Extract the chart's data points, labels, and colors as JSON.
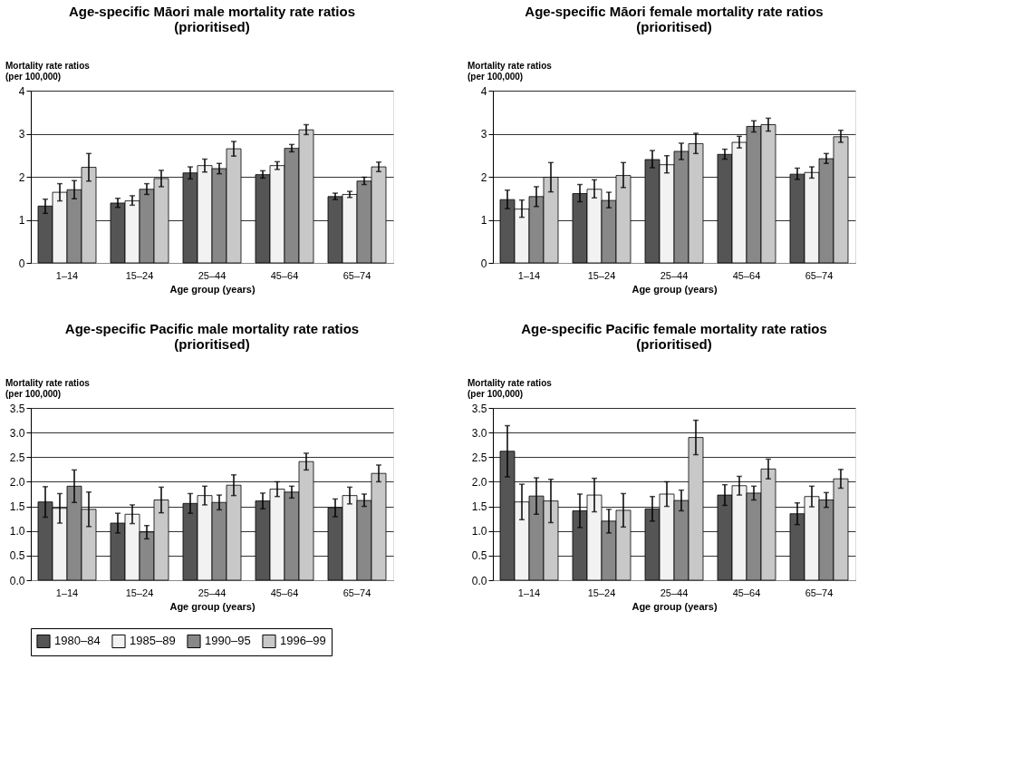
{
  "chart_data": [
    {
      "type": "bar",
      "title": "Age-specific Māori male mortality rate ratios\n(prioritised)",
      "xlabel": "Age group (years)",
      "ylabel": "Mortality rate ratios\n(per 100,000)",
      "categories": [
        "1–14",
        "15–24",
        "25–44",
        "45–64",
        "65–74"
      ],
      "ylim": [
        0,
        4
      ],
      "yticks": [
        0,
        1,
        2,
        3,
        4
      ],
      "grid": "y",
      "legend": "bottom",
      "series": [
        {
          "name": "1980–84",
          "color": "#555555",
          "values": [
            1.32,
            1.39,
            2.09,
            2.05,
            1.54
          ],
          "errors": [
            [
              1.15,
              1.48
            ],
            [
              1.29,
              1.5
            ],
            [
              1.95,
              2.23
            ],
            [
              1.97,
              2.14
            ],
            [
              1.47,
              1.62
            ]
          ]
        },
        {
          "name": "1985–89",
          "color": "#f2f2f2",
          "values": [
            1.64,
            1.44,
            2.26,
            2.26,
            1.59
          ],
          "errors": [
            [
              1.44,
              1.84
            ],
            [
              1.34,
              1.56
            ],
            [
              2.11,
              2.41
            ],
            [
              2.17,
              2.35
            ],
            [
              1.52,
              1.66
            ]
          ]
        },
        {
          "name": "1990–95",
          "color": "#888888",
          "values": [
            1.7,
            1.71,
            2.19,
            2.66,
            1.9
          ],
          "errors": [
            [
              1.49,
              1.91
            ],
            [
              1.59,
              1.84
            ],
            [
              2.07,
              2.31
            ],
            [
              2.58,
              2.75
            ],
            [
              1.82,
              1.99
            ]
          ]
        },
        {
          "name": "1996–99",
          "color": "#c8c8c8",
          "values": [
            2.22,
            1.96,
            2.65,
            3.09,
            2.23
          ],
          "errors": [
            [
              1.9,
              2.54
            ],
            [
              1.77,
              2.15
            ],
            [
              2.48,
              2.82
            ],
            [
              2.98,
              3.21
            ],
            [
              2.12,
              2.34
            ]
          ]
        }
      ]
    },
    {
      "type": "bar",
      "title": "Age-specific Māori female mortality rate ratios\n(prioritised)",
      "xlabel": "Age group (years)",
      "ylabel": "Mortality rate ratios\n(per 100,000)",
      "categories": [
        "1–14",
        "15–24",
        "25–44",
        "45–64",
        "65–74"
      ],
      "ylim": [
        0,
        4
      ],
      "yticks": [
        0,
        1,
        2,
        3,
        4
      ],
      "grid": "y",
      "legend": "bottom",
      "series": [
        {
          "name": "1980–84",
          "color": "#555555",
          "values": [
            1.47,
            1.61,
            2.4,
            2.52,
            2.06
          ],
          "errors": [
            [
              1.26,
              1.69
            ],
            [
              1.42,
              1.82
            ],
            [
              2.21,
              2.61
            ],
            [
              2.41,
              2.64
            ],
            [
              1.94,
              2.2
            ]
          ]
        },
        {
          "name": "1985–89",
          "color": "#f2f2f2",
          "values": [
            1.25,
            1.71,
            2.28,
            2.8,
            2.1
          ],
          "errors": [
            [
              1.06,
              1.46
            ],
            [
              1.51,
              1.93
            ],
            [
              2.09,
              2.49
            ],
            [
              2.67,
              2.94
            ],
            [
              1.97,
              2.23
            ]
          ]
        },
        {
          "name": "1990–95",
          "color": "#888888",
          "values": [
            1.54,
            1.45,
            2.59,
            3.17,
            2.42
          ],
          "errors": [
            [
              1.31,
              1.77
            ],
            [
              1.28,
              1.64
            ],
            [
              2.4,
              2.78
            ],
            [
              3.04,
              3.3
            ],
            [
              2.31,
              2.54
            ]
          ]
        },
        {
          "name": "1996–99",
          "color": "#c8c8c8",
          "values": [
            1.99,
            2.03,
            2.77,
            3.21,
            2.93
          ],
          "errors": [
            [
              1.65,
              2.33
            ],
            [
              1.75,
              2.33
            ],
            [
              2.54,
              3.01
            ],
            [
              3.06,
              3.36
            ],
            [
              2.8,
              3.08
            ]
          ]
        }
      ]
    },
    {
      "type": "bar",
      "title": "Age-specific Pacific male mortality rate ratios\n(prioritised)",
      "xlabel": "Age group (years)",
      "ylabel": "Mortality rate ratios\n(per 100,000)",
      "categories": [
        "1–14",
        "15–24",
        "25–44",
        "45–64",
        "65–74"
      ],
      "ylim": [
        0,
        3.5
      ],
      "yticks": [
        {
          "value": 0,
          "label": "0.0"
        },
        0.5,
        {
          "value": 1,
          "label": "1.0"
        },
        1.5,
        {
          "value": 2,
          "label": "2.0"
        },
        2.5,
        {
          "value": 3,
          "label": "3.0"
        },
        3.5
      ],
      "grid": "y",
      "legend": "bottom",
      "series": [
        {
          "name": "1980–84",
          "color": "#555555",
          "values": [
            1.59,
            1.16,
            1.56,
            1.61,
            1.47
          ],
          "errors": [
            [
              1.28,
              1.9
            ],
            [
              0.96,
              1.36
            ],
            [
              1.36,
              1.76
            ],
            [
              1.45,
              1.77
            ],
            [
              1.29,
              1.65
            ]
          ]
        },
        {
          "name": "1985–89",
          "color": "#f2f2f2",
          "values": [
            1.46,
            1.34,
            1.72,
            1.85,
            1.72
          ],
          "errors": [
            [
              1.16,
              1.76
            ],
            [
              1.15,
              1.53
            ],
            [
              1.53,
              1.91
            ],
            [
              1.7,
              2.0
            ],
            [
              1.55,
              1.89
            ]
          ]
        },
        {
          "name": "1990–95",
          "color": "#888888",
          "values": [
            1.91,
            0.98,
            1.58,
            1.79,
            1.62
          ],
          "errors": [
            [
              1.58,
              2.24
            ],
            [
              0.84,
              1.11
            ],
            [
              1.43,
              1.73
            ],
            [
              1.67,
              1.91
            ],
            [
              1.5,
              1.75
            ]
          ]
        },
        {
          "name": "1996–99",
          "color": "#c8c8c8",
          "values": [
            1.44,
            1.63,
            1.93,
            2.41,
            2.17
          ],
          "errors": [
            [
              1.09,
              1.79
            ],
            [
              1.37,
              1.89
            ],
            [
              1.72,
              2.14
            ],
            [
              2.24,
              2.58
            ],
            [
              2.0,
              2.34
            ]
          ]
        }
      ]
    },
    {
      "type": "bar",
      "title": "Age-specific Pacific female mortality rate ratios\n(prioritised)",
      "xlabel": "Age group (years)",
      "ylabel": "Mortality rate ratios\n(per 100,000)",
      "categories": [
        "1–14",
        "15–24",
        "25–44",
        "45–64",
        "65–74"
      ],
      "ylim": [
        0,
        3.5
      ],
      "yticks": [
        {
          "value": 0,
          "label": "0.0"
        },
        0.5,
        {
          "value": 1,
          "label": "1.0"
        },
        1.5,
        {
          "value": 2,
          "label": "2.0"
        },
        2.5,
        {
          "value": 3,
          "label": "3.0"
        },
        3.5
      ],
      "grid": "y",
      "legend": "bottom",
      "series": [
        {
          "name": "1980–84",
          "color": "#555555",
          "values": [
            2.62,
            1.41,
            1.45,
            1.73,
            1.35
          ],
          "errors": [
            [
              2.1,
              3.14
            ],
            [
              1.07,
              1.75
            ],
            [
              1.2,
              1.7
            ],
            [
              1.52,
              1.94
            ],
            [
              1.13,
              1.57
            ]
          ]
        },
        {
          "name": "1985–89",
          "color": "#f2f2f2",
          "values": [
            1.59,
            1.73,
            1.75,
            1.92,
            1.7
          ],
          "errors": [
            [
              1.23,
              1.95
            ],
            [
              1.39,
              2.07
            ],
            [
              1.5,
              2.0
            ],
            [
              1.73,
              2.11
            ],
            [
              1.49,
              1.91
            ]
          ]
        },
        {
          "name": "1990–95",
          "color": "#888888",
          "values": [
            1.71,
            1.2,
            1.62,
            1.77,
            1.63
          ],
          "errors": [
            [
              1.34,
              2.08
            ],
            [
              0.96,
              1.44
            ],
            [
              1.41,
              1.83
            ],
            [
              1.63,
              1.91
            ],
            [
              1.48,
              1.78
            ]
          ]
        },
        {
          "name": "1996–99",
          "color": "#c8c8c8",
          "values": [
            1.61,
            1.42,
            2.9,
            2.26,
            2.06
          ],
          "errors": [
            [
              1.17,
              2.05
            ],
            [
              1.08,
              1.76
            ],
            [
              2.55,
              3.25
            ],
            [
              2.06,
              2.46
            ],
            [
              1.87,
              2.25
            ]
          ]
        }
      ]
    }
  ]
}
